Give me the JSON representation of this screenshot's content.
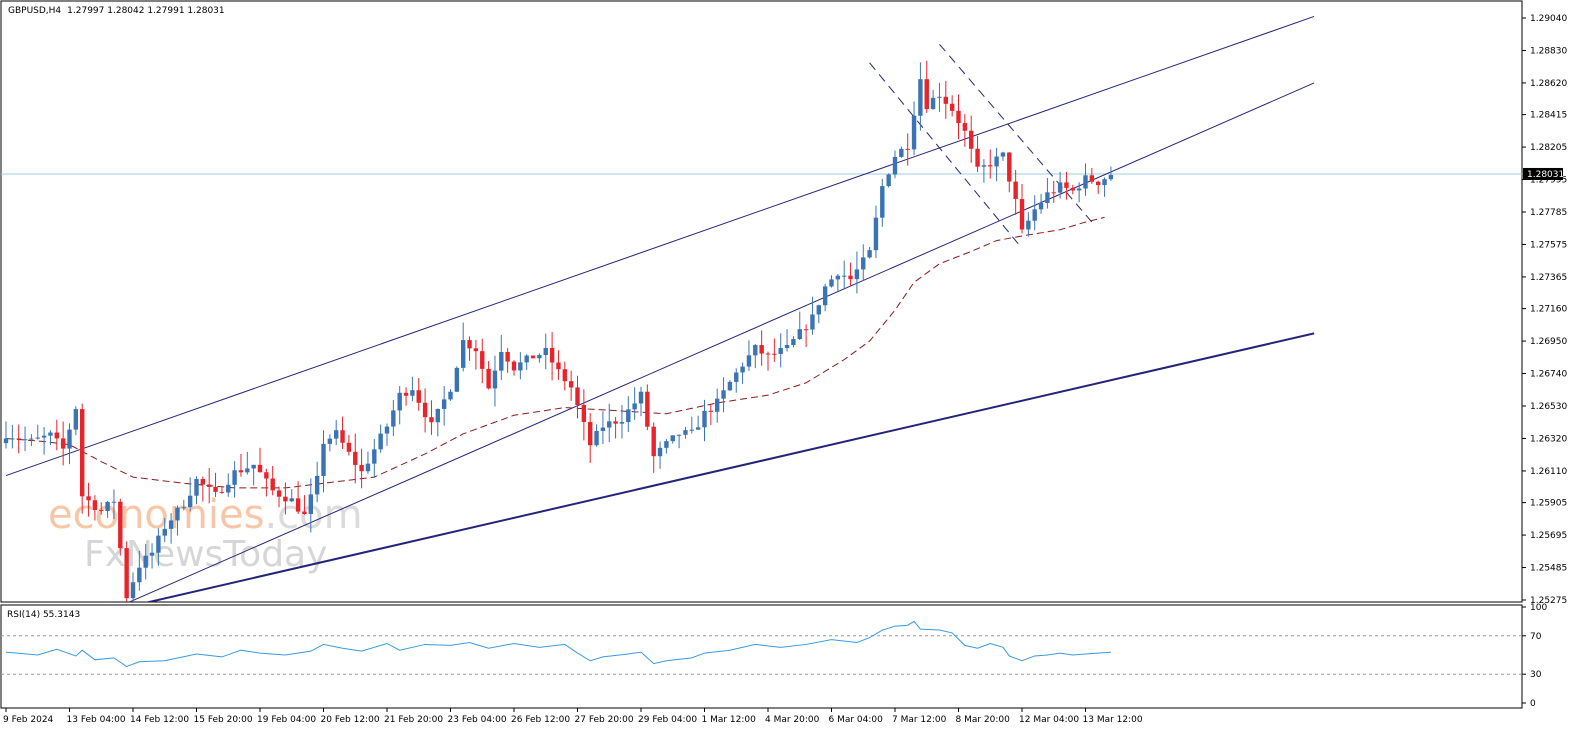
{
  "header": {
    "symbol": "GBPUSD,H4",
    "ohlc": "1.27997 1.28042 1.27991 1.28031"
  },
  "current_price": "1.28031",
  "watermark": {
    "line1": "economies",
    "line1_suffix": ".com",
    "line2": "FxNewsToday"
  },
  "rsi": {
    "label": "RSI(14) 55.3143",
    "levels": [
      "100",
      "70",
      "30",
      "0"
    ]
  },
  "colors": {
    "bull": "#3a74b4",
    "bear": "#e8232a",
    "ma": "#8b1a1a",
    "channel": "#24247a",
    "rsi": "#3a9ae0",
    "price_line": "#9ecde6"
  },
  "chart_data": {
    "type": "candlestick",
    "timeframe": "H4",
    "price_axis_ticks": [
      1.2904,
      1.2883,
      1.2862,
      1.28415,
      1.28205,
      1.27995,
      1.27785,
      1.27575,
      1.27365,
      1.2716,
      1.2695,
      1.2674,
      1.2653,
      1.2632,
      1.2611,
      1.25905,
      1.25695,
      1.25485,
      1.25275
    ],
    "price_axis_labels": [
      "1.29040",
      "1.28830",
      "1.28620",
      "1.28415",
      "1.28205",
      "1.27995",
      "1.27785",
      "1.27575",
      "1.27365",
      "1.27160",
      "1.26950",
      "1.26740",
      "1.26530",
      "1.26320",
      "1.26110",
      "1.25905",
      "1.25695",
      "1.25485",
      "1.25275"
    ],
    "ylim": [
      1.2522,
      1.2913
    ],
    "time_axis": [
      {
        "label": "9 Feb 2024",
        "bar": 0
      },
      {
        "label": "13 Feb 04:00",
        "bar": 10
      },
      {
        "label": "14 Feb 12:00",
        "bar": 20
      },
      {
        "label": "15 Feb 20:00",
        "bar": 30
      },
      {
        "label": "19 Feb 04:00",
        "bar": 40
      },
      {
        "label": "20 Feb 12:00",
        "bar": 50
      },
      {
        "label": "21 Feb 20:00",
        "bar": 60
      },
      {
        "label": "23 Feb 04:00",
        "bar": 70
      },
      {
        "label": "26 Feb 12:00",
        "bar": 80
      },
      {
        "label": "27 Feb 20:00",
        "bar": 90
      },
      {
        "label": "29 Feb 04:00",
        "bar": 100
      },
      {
        "label": "1 Mar 12:00",
        "bar": 110
      },
      {
        "label": "4 Mar 20:00",
        "bar": 120
      },
      {
        "label": "6 Mar 04:00",
        "bar": 130
      },
      {
        "label": "7 Mar 12:00",
        "bar": 140
      },
      {
        "label": "8 Mar 20:00",
        "bar": 150
      },
      {
        "label": "12 Mar 04:00",
        "bar": 160
      },
      {
        "label": "13 Mar 12:00",
        "bar": 170
      }
    ],
    "close_points": [
      [
        0,
        1.2635
      ],
      [
        4,
        1.263
      ],
      [
        7,
        1.2634
      ],
      [
        9,
        1.2625
      ],
      [
        11,
        1.2652
      ],
      [
        12,
        1.2595
      ],
      [
        15,
        1.2585
      ],
      [
        17,
        1.2592
      ],
      [
        19,
        1.253
      ],
      [
        21,
        1.255
      ],
      [
        23,
        1.2558
      ],
      [
        25,
        1.2575
      ],
      [
        28,
        1.259
      ],
      [
        30,
        1.2605
      ],
      [
        33,
        1.2595
      ],
      [
        36,
        1.261
      ],
      [
        39,
        1.2615
      ],
      [
        42,
        1.2598
      ],
      [
        45,
        1.2592
      ],
      [
        47,
        1.2582
      ],
      [
        49,
        1.2605
      ],
      [
        50,
        1.263
      ],
      [
        52,
        1.2635
      ],
      [
        54,
        1.2622
      ],
      [
        56,
        1.261
      ],
      [
        58,
        1.2625
      ],
      [
        60,
        1.264
      ],
      [
        62,
        1.266
      ],
      [
        64,
        1.2665
      ],
      [
        67,
        1.264
      ],
      [
        70,
        1.2665
      ],
      [
        72,
        1.2695
      ],
      [
        74,
        1.269
      ],
      [
        76,
        1.2665
      ],
      [
        78,
        1.269
      ],
      [
        80,
        1.2678
      ],
      [
        83,
        1.2685
      ],
      [
        85,
        1.2688
      ],
      [
        87,
        1.2675
      ],
      [
        89,
        1.2665
      ],
      [
        92,
        1.2628
      ],
      [
        94,
        1.264
      ],
      [
        97,
        1.2645
      ],
      [
        100,
        1.266
      ],
      [
        102,
        1.262
      ],
      [
        104,
        1.2628
      ],
      [
        106,
        1.2635
      ],
      [
        108,
        1.2635
      ],
      [
        110,
        1.2648
      ],
      [
        112,
        1.2655
      ],
      [
        114,
        1.2668
      ],
      [
        116,
        1.268
      ],
      [
        118,
        1.269
      ],
      [
        120,
        1.2685
      ],
      [
        123,
        1.269
      ],
      [
        125,
        1.27
      ],
      [
        127,
        1.271
      ],
      [
        129,
        1.273
      ],
      [
        131,
        1.274
      ],
      [
        133,
        1.2735
      ],
      [
        136,
        1.2752
      ],
      [
        138,
        1.2795
      ],
      [
        140,
        1.2815
      ],
      [
        142,
        1.2822
      ],
      [
        144,
        1.2865
      ],
      [
        145,
        1.2848
      ],
      [
        147,
        1.2855
      ],
      [
        149,
        1.2845
      ],
      [
        151,
        1.283
      ],
      [
        153,
        1.2805
      ],
      [
        155,
        1.281
      ],
      [
        157,
        1.2815
      ],
      [
        159,
        1.2785
      ],
      [
        160,
        1.2765
      ],
      [
        162,
        1.278
      ],
      [
        164,
        1.279
      ],
      [
        166,
        1.2795
      ],
      [
        168,
        1.2792
      ],
      [
        170,
        1.28
      ],
      [
        172,
        1.2798
      ],
      [
        174,
        1.2803
      ]
    ],
    "moving_average": {
      "style": "dashed",
      "points": [
        [
          0,
          1.2632
        ],
        [
          6,
          1.263
        ],
        [
          10,
          1.2628
        ],
        [
          15,
          1.2617
        ],
        [
          20,
          1.2607
        ],
        [
          28,
          1.2603
        ],
        [
          36,
          1.26
        ],
        [
          44,
          1.26
        ],
        [
          50,
          1.2603
        ],
        [
          58,
          1.2607
        ],
        [
          66,
          1.2622
        ],
        [
          72,
          1.2635
        ],
        [
          80,
          1.2647
        ],
        [
          88,
          1.2652
        ],
        [
          96,
          1.265
        ],
        [
          104,
          1.2648
        ],
        [
          112,
          1.2655
        ],
        [
          120,
          1.266
        ],
        [
          126,
          1.2668
        ],
        [
          132,
          1.2683
        ],
        [
          136,
          1.2695
        ],
        [
          140,
          1.2715
        ],
        [
          143,
          1.2733
        ],
        [
          147,
          1.2745
        ],
        [
          152,
          1.2753
        ],
        [
          156,
          1.276
        ],
        [
          160,
          1.2763
        ],
        [
          166,
          1.2767
        ],
        [
          170,
          1.2772
        ],
        [
          173,
          1.2775
        ]
      ]
    },
    "trendlines": [
      {
        "name": "upper-channel",
        "style": "solid",
        "points": [
          [
            0,
            1.2608
          ],
          [
            206,
            1.2905
          ]
        ]
      },
      {
        "name": "lower-channel",
        "style": "solid",
        "points": [
          [
            16,
            1.252
          ],
          [
            206,
            1.2862
          ]
        ]
      },
      {
        "name": "major-support",
        "style": "solid-thick",
        "points": [
          [
            16,
            1.252
          ],
          [
            206,
            1.27
          ]
        ]
      },
      {
        "name": "flag-upper",
        "style": "dashed",
        "points": [
          [
            147,
            1.2887
          ],
          [
            171,
            1.2772
          ]
        ]
      },
      {
        "name": "flag-lower",
        "style": "dashed",
        "points": [
          [
            136,
            1.2875
          ],
          [
            160,
            1.2755
          ]
        ]
      }
    ],
    "rsi_points": [
      [
        0,
        53
      ],
      [
        5,
        50
      ],
      [
        8,
        56
      ],
      [
        11,
        49
      ],
      [
        12,
        55
      ],
      [
        14,
        45
      ],
      [
        17,
        47
      ],
      [
        19,
        38
      ],
      [
        21,
        43
      ],
      [
        25,
        44
      ],
      [
        30,
        51
      ],
      [
        34,
        48
      ],
      [
        37,
        55
      ],
      [
        40,
        52
      ],
      [
        44,
        50
      ],
      [
        48,
        54
      ],
      [
        50,
        61
      ],
      [
        53,
        57
      ],
      [
        56,
        54
      ],
      [
        60,
        62
      ],
      [
        62,
        55
      ],
      [
        66,
        61
      ],
      [
        70,
        60
      ],
      [
        73,
        63
      ],
      [
        76,
        57
      ],
      [
        80,
        62
      ],
      [
        84,
        58
      ],
      [
        88,
        61
      ],
      [
        90,
        52
      ],
      [
        92,
        44
      ],
      [
        94,
        48
      ],
      [
        98,
        51
      ],
      [
        100,
        53
      ],
      [
        102,
        41
      ],
      [
        104,
        44
      ],
      [
        108,
        47
      ],
      [
        110,
        52
      ],
      [
        114,
        55
      ],
      [
        118,
        61
      ],
      [
        122,
        58
      ],
      [
        126,
        61
      ],
      [
        130,
        66
      ],
      [
        134,
        63
      ],
      [
        136,
        68
      ],
      [
        138,
        76
      ],
      [
        140,
        80
      ],
      [
        142,
        81
      ],
      [
        143,
        85
      ],
      [
        144,
        77
      ],
      [
        147,
        76
      ],
      [
        149,
        73
      ],
      [
        151,
        60
      ],
      [
        153,
        57
      ],
      [
        155,
        62
      ],
      [
        157,
        58
      ],
      [
        158,
        49
      ],
      [
        160,
        44
      ],
      [
        162,
        49
      ],
      [
        164,
        50
      ],
      [
        166,
        52
      ],
      [
        168,
        50
      ],
      [
        170,
        51
      ],
      [
        172,
        52
      ],
      [
        174,
        53
      ]
    ],
    "rsi_range": [
      0,
      100
    ],
    "rsi_levels": [
      70,
      30
    ]
  }
}
